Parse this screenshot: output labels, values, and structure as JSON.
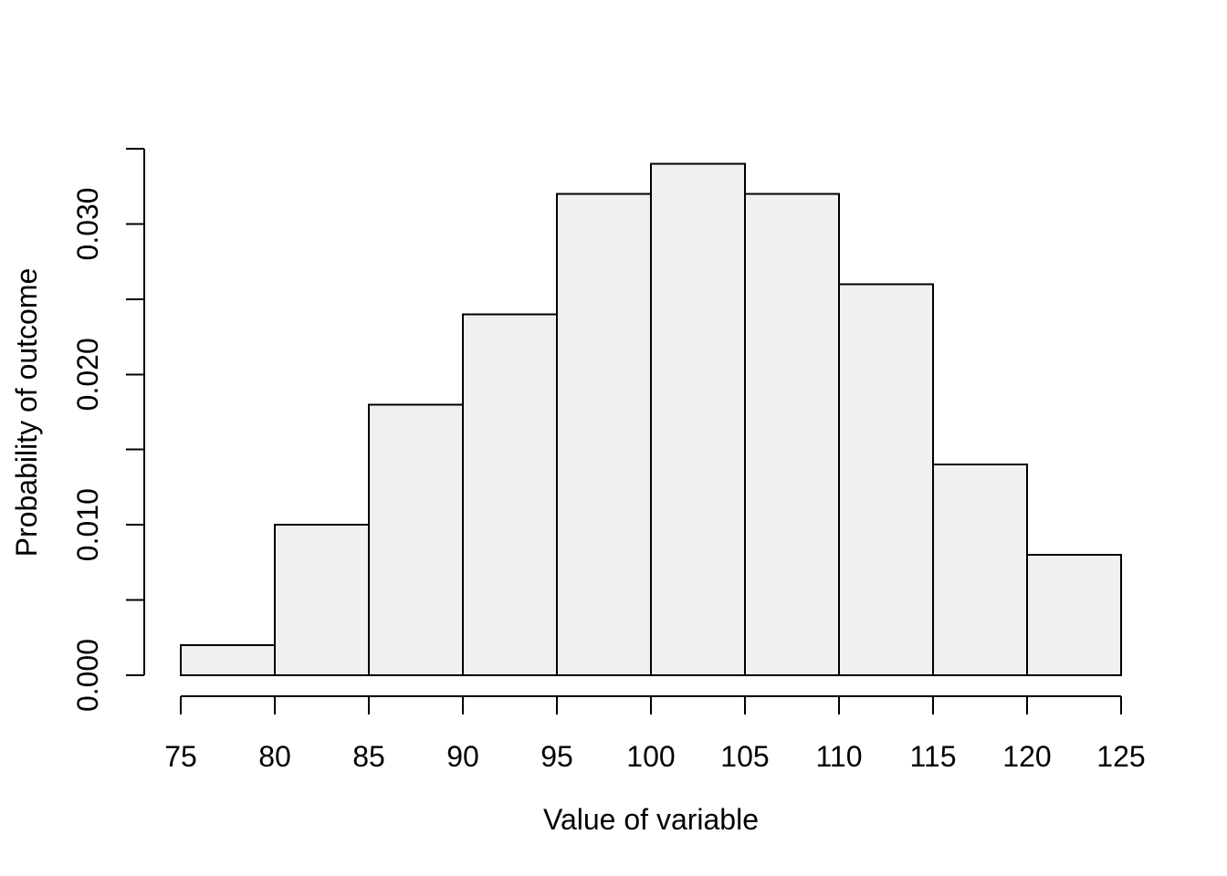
{
  "chart_data": {
    "type": "bar",
    "subtype": "histogram",
    "title": "",
    "xlabel": "Value of variable",
    "ylabel": "Probability of outcome",
    "bin_edges": [
      75,
      80,
      85,
      90,
      95,
      100,
      105,
      110,
      115,
      120,
      125
    ],
    "values": [
      0.002,
      0.01,
      0.018,
      0.024,
      0.032,
      0.034,
      0.032,
      0.026,
      0.014,
      0.008
    ],
    "xlim": [
      75,
      125
    ],
    "ylim": [
      0,
      0.035
    ],
    "x_ticks": [
      75,
      80,
      85,
      90,
      95,
      100,
      105,
      110,
      115,
      120,
      125
    ],
    "y_ticks": [
      0,
      0.005,
      0.01,
      0.015,
      0.02,
      0.025,
      0.03,
      0.035
    ],
    "y_labeled_ticks": [
      {
        "value": 0,
        "label": "0.000"
      },
      {
        "value": 0.01,
        "label": "0.010"
      },
      {
        "value": 0.02,
        "label": "0.020"
      },
      {
        "value": 0.03,
        "label": "0.030"
      }
    ],
    "grid": false,
    "legend": null,
    "colors": {
      "bar_fill": "#f0f0f0",
      "stroke": "#000000",
      "background": "#ffffff",
      "text": "#000000"
    }
  }
}
